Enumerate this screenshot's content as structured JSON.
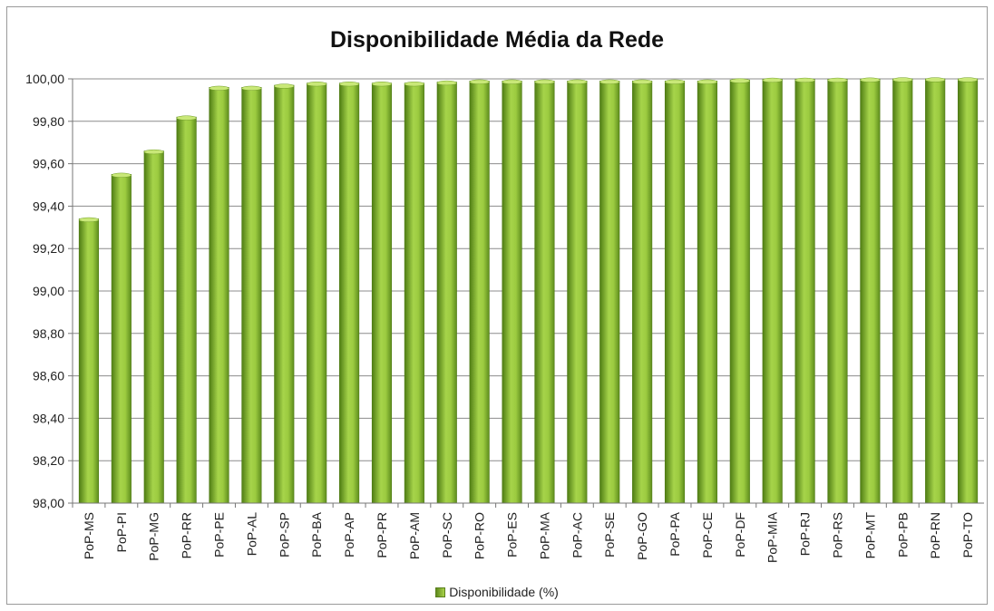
{
  "chart_data": {
    "type": "bar",
    "title": "Disponibilidade Média da Rede",
    "categories": [
      "PoP-MS",
      "PoP-PI",
      "PoP-MG",
      "PoP-RR",
      "PoP-PE",
      "PoP-AL",
      "PoP-SP",
      "PoP-BA",
      "PoP-AP",
      "PoP-PR",
      "PoP-AM",
      "PoP-SC",
      "PoP-RO",
      "PoP-ES",
      "PoP-MA",
      "PoP-AC",
      "PoP-SE",
      "PoP-GO",
      "PoP-PA",
      "PoP-CE",
      "PoP-DF",
      "PoP-MIA",
      "PoP-RJ",
      "PoP-RS",
      "PoP-MT",
      "PoP-PB",
      "PoP-RN",
      "PoP-TO"
    ],
    "series": [
      {
        "name": "Disponibilidade (%)",
        "values": [
          99.34,
          99.55,
          99.66,
          99.82,
          99.96,
          99.96,
          99.97,
          99.98,
          99.98,
          99.98,
          99.98,
          99.985,
          99.99,
          99.99,
          99.99,
          99.99,
          99.99,
          99.99,
          99.99,
          99.99,
          99.995,
          99.998,
          99.998,
          99.998,
          99.999,
          100.0,
          100.0,
          100.0
        ]
      }
    ],
    "ylim": [
      98.0,
      100.0
    ],
    "yticks": [
      "98,00",
      "98,20",
      "98,40",
      "98,60",
      "98,80",
      "99,00",
      "99,20",
      "99,40",
      "99,60",
      "99,80",
      "100,00"
    ],
    "grid": true,
    "legend_position": "bottom",
    "colors": {
      "bar_dark": "#5a8a1a",
      "bar_light": "#b5dc55",
      "bar_top": "#c9e878",
      "grid": "#8c8c8c"
    }
  }
}
